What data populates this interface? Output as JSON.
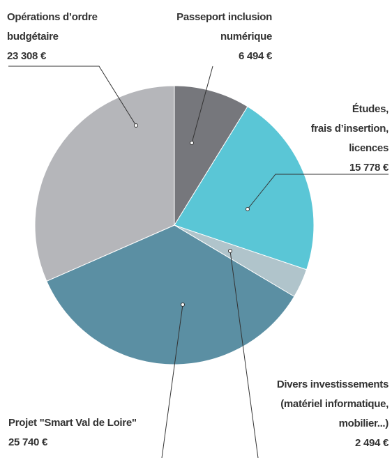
{
  "chart_data": {
    "type": "pie",
    "categories": [
      [
        "Passeport inclusion",
        "numérique"
      ],
      [
        "Études,",
        "frais d’insertion,",
        "licences"
      ],
      [
        "Divers investissements",
        "(matériel informatique,",
        "mobilier...)"
      ],
      [
        "Projet \"Smart Val de Loire\""
      ],
      [
        "Opérations d’ordre",
        "budgétaire"
      ]
    ],
    "values": [
      6494,
      15778,
      2494,
      25740,
      23308
    ],
    "value_labels": [
      "6 494 €",
      "15 778 €",
      "2 494 €",
      "25 740 €",
      "23 308 €"
    ],
    "colors": [
      "#76777c",
      "#5ac6d6",
      "#b0c4cb",
      "#5b8fa3",
      "#b5b6ba"
    ]
  }
}
